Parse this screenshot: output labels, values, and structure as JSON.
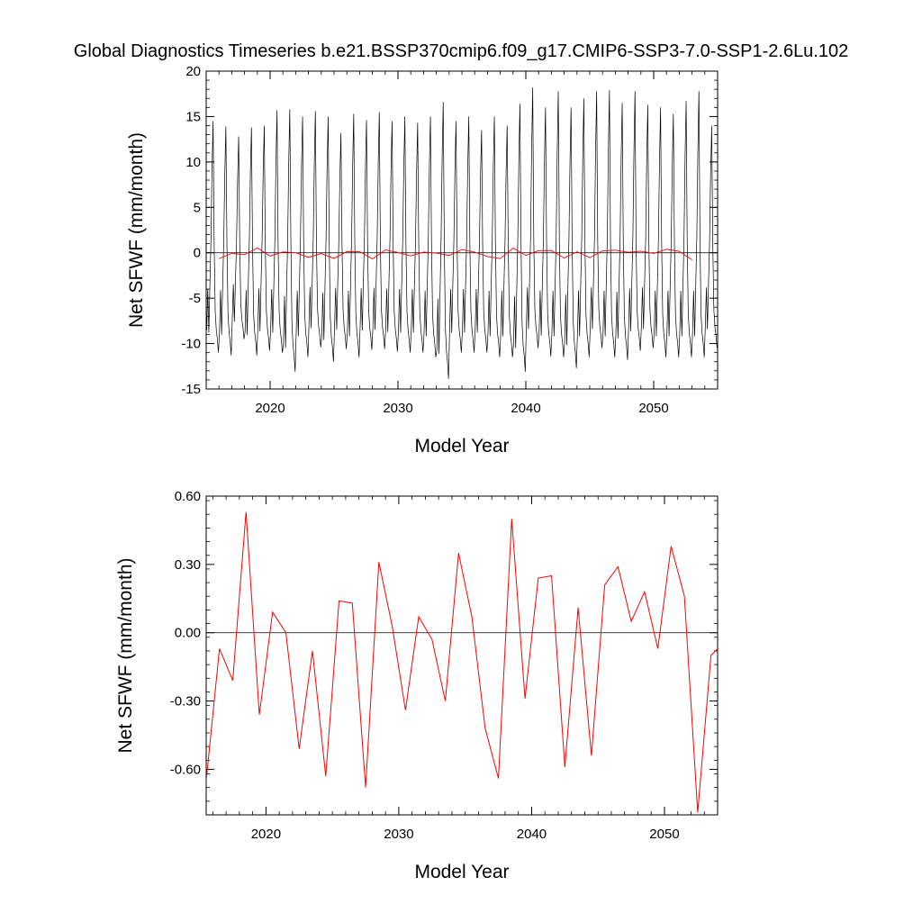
{
  "figure_title": "Global Diagnostics Timeseries b.e21.BSSP370cmip6.f09_g17.CMIP6-SSP3-7.0-SSP1-2.6Lu.102",
  "colors": {
    "monthly": "#000000",
    "annual": "#ff0000",
    "zero_line": "#000000"
  },
  "chart_data": [
    {
      "type": "line",
      "title": "",
      "xlabel": "Model Year",
      "ylabel": "Net SFWF (mm/month)",
      "xlim": [
        2015,
        2055
      ],
      "ylim": [
        -15,
        20
      ],
      "x_ticks": [
        2020,
        2030,
        2040,
        2050
      ],
      "x_tick_labels": [
        "2020",
        "2030",
        "2040",
        "2050"
      ],
      "y_ticks": [
        -15,
        -10,
        -5,
        0,
        5,
        10,
        15,
        20
      ],
      "y_tick_labels": [
        "-15",
        "-10",
        "-5",
        "0",
        "5",
        "10",
        "15",
        "20"
      ],
      "grid": false,
      "reference_line": 0,
      "monthly": {
        "x_start": 2015.04,
        "x_step": 0.08333,
        "annual_cycle": [
          -8.5,
          -4.0,
          -8.8,
          -3.5,
          1.3,
          8.8,
          14.0,
          1.0,
          -6.5,
          -8.5,
          -9.5,
          -11.0
        ],
        "yearly_peaks": [
          14.5,
          13.9,
          12.8,
          13.8,
          14.0,
          15.7,
          15.8,
          15.0,
          15.6,
          15.0,
          13.2,
          15.3,
          14.6,
          15.5,
          14.5,
          15.0,
          14.3,
          15.0,
          16.6,
          14.5,
          15.0,
          13.5,
          15.0,
          14.0,
          16.4,
          18.2,
          16.0,
          17.8,
          16.0,
          17.0,
          17.8,
          17.9,
          16.5,
          17.8,
          16.3,
          16.0,
          15.3,
          16.7,
          17.8,
          14.0
        ],
        "yearly_troughs": [
          -11.0,
          -11.3,
          -9.5,
          -11.3,
          -10.8,
          -11.0,
          -13.1,
          -11.5,
          -10.4,
          -12.0,
          -10.6,
          -11.5,
          -10.7,
          -10.6,
          -10.9,
          -11.0,
          -11.0,
          -11.5,
          -13.9,
          -11.0,
          -11.0,
          -11.0,
          -11.5,
          -11.5,
          -13.1,
          -10.5,
          -11.4,
          -11.5,
          -12.7,
          -11.5,
          -10.5,
          -11.5,
          -11.8,
          -10.8,
          -10.5,
          -11.5,
          -11.5,
          -11.5,
          -11.5,
          -10.5
        ]
      },
      "annual_series": {
        "name": "",
        "x": [
          2016.0,
          2017.0,
          2018.0,
          2019.0,
          2020.0,
          2021.0,
          2022.0,
          2023.0,
          2024.0,
          2025.0,
          2026.0,
          2027.0,
          2028.0,
          2029.0,
          2030.0,
          2031.0,
          2032.0,
          2033.0,
          2034.0,
          2035.0,
          2036.0,
          2037.0,
          2038.0,
          2039.0,
          2040.0,
          2041.0,
          2042.0,
          2043.0,
          2044.0,
          2045.0,
          2046.0,
          2047.0,
          2048.0,
          2049.0,
          2050.0,
          2051.0,
          2052.0,
          2053.0
        ],
        "values": [
          -0.65,
          -0.07,
          -0.21,
          0.53,
          -0.36,
          0.09,
          0.0,
          -0.51,
          -0.08,
          -0.63,
          0.14,
          0.13,
          -0.68,
          0.31,
          0.03,
          -0.34,
          0.07,
          -0.03,
          -0.3,
          0.35,
          0.07,
          -0.42,
          -0.64,
          0.5,
          -0.29,
          0.24,
          0.25,
          -0.59,
          0.11,
          -0.54,
          0.21,
          0.29,
          0.05,
          0.18,
          -0.07,
          0.38,
          0.16,
          -0.79
        ]
      }
    },
    {
      "type": "line",
      "title": "",
      "xlabel": "Model Year",
      "ylabel": "Net SFWF (mm/month)",
      "xlim": [
        2015.5,
        2054
      ],
      "ylim": [
        -0.8,
        0.6
      ],
      "x_ticks": [
        2020,
        2030,
        2040,
        2050
      ],
      "x_tick_labels": [
        "2020",
        "2030",
        "2040",
        "2050"
      ],
      "y_ticks": [
        -0.6,
        -0.3,
        0.0,
        0.3,
        0.6
      ],
      "y_tick_labels": [
        "-0.60",
        "-0.30",
        "0.00",
        "0.30",
        "0.60"
      ],
      "grid": false,
      "reference_line": 0,
      "series": [
        {
          "name": "",
          "x": [
            2015.5,
            2016.5,
            2017.5,
            2018.5,
            2019.5,
            2020.5,
            2021.5,
            2022.5,
            2023.5,
            2024.5,
            2025.5,
            2026.5,
            2027.5,
            2028.5,
            2029.5,
            2030.5,
            2031.5,
            2032.5,
            2033.5,
            2034.5,
            2035.5,
            2036.5,
            2037.5,
            2038.5,
            2039.5,
            2040.5,
            2041.5,
            2042.5,
            2043.5,
            2044.5,
            2045.5,
            2046.5,
            2047.5,
            2048.5,
            2049.5,
            2050.5,
            2051.5,
            2052.5,
            2053.5,
            2054.0
          ],
          "values": [
            -0.65,
            -0.07,
            -0.21,
            0.53,
            -0.36,
            0.09,
            0.0,
            -0.51,
            -0.08,
            -0.63,
            0.14,
            0.13,
            -0.68,
            0.31,
            0.03,
            -0.34,
            0.07,
            -0.03,
            -0.3,
            0.35,
            0.07,
            -0.42,
            -0.64,
            0.5,
            -0.29,
            0.24,
            0.25,
            -0.59,
            0.11,
            -0.54,
            0.21,
            0.29,
            0.05,
            0.18,
            -0.07,
            0.38,
            0.16,
            -0.79,
            -0.1,
            -0.07
          ]
        }
      ]
    }
  ]
}
